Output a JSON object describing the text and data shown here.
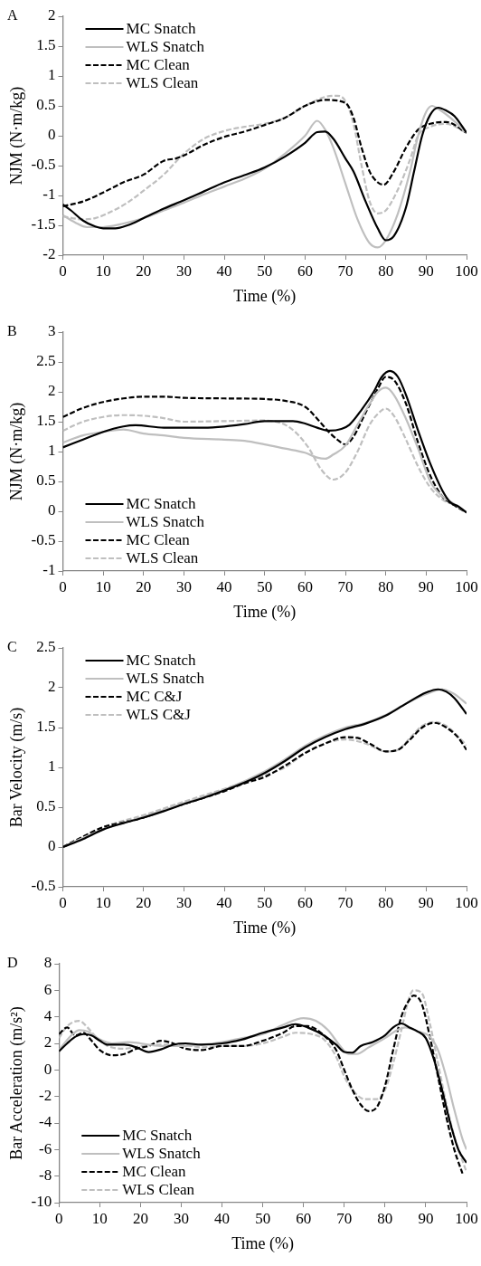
{
  "chart_data": [
    {
      "type": "line",
      "title": "A",
      "xlabel": "Time (%)",
      "ylabel": "NJM (N·m/kg)",
      "xlim": [
        0,
        100
      ],
      "xticks": [
        0,
        10,
        20,
        30,
        40,
        50,
        60,
        70,
        80,
        90,
        100
      ],
      "ylim": [
        -2,
        2
      ],
      "yticks": [
        -2,
        -1.5,
        -1,
        -0.5,
        0,
        0.5,
        1,
        1.5,
        2
      ],
      "legend": "top left",
      "series": [
        {
          "name": "MC Snatch",
          "color": "#000000",
          "line_style": "solid",
          "x": [
            0,
            2,
            5,
            8,
            10,
            13,
            16,
            20,
            25,
            30,
            35,
            40,
            45,
            50,
            55,
            60,
            63,
            65,
            67,
            70,
            72,
            75,
            78,
            80,
            82,
            85,
            87,
            89,
            91,
            93,
            95,
            97,
            100
          ],
          "values": [
            -1.15,
            -1.25,
            -1.42,
            -1.52,
            -1.55,
            -1.55,
            -1.5,
            -1.38,
            -1.22,
            -1.08,
            -0.93,
            -0.78,
            -0.66,
            -0.53,
            -0.35,
            -0.12,
            0.06,
            0.07,
            -0.05,
            -0.38,
            -0.6,
            -1.1,
            -1.55,
            -1.75,
            -1.68,
            -1.2,
            -0.6,
            0,
            0.35,
            0.47,
            0.42,
            0.33,
            0.05
          ]
        },
        {
          "name": "WLS Snatch",
          "color": "#bfbfbf",
          "line_style": "solid",
          "x": [
            0,
            3,
            6,
            10,
            15,
            20,
            25,
            30,
            35,
            40,
            45,
            50,
            55,
            60,
            63,
            65,
            67,
            70,
            73,
            76,
            78,
            80,
            83,
            86,
            88,
            90,
            91.5,
            93,
            96,
            100
          ],
          "values": [
            -1.33,
            -1.45,
            -1.53,
            -1.53,
            -1.47,
            -1.38,
            -1.25,
            -1.12,
            -0.98,
            -0.85,
            -0.72,
            -0.55,
            -0.3,
            0,
            0.25,
            0.1,
            -0.2,
            -0.8,
            -1.4,
            -1.8,
            -1.87,
            -1.75,
            -1.3,
            -0.6,
            0,
            0.4,
            0.5,
            0.45,
            0.3,
            0.05
          ]
        },
        {
          "name": "MC Clean",
          "color": "#000000",
          "line_style": "dashed",
          "x": [
            0,
            5,
            10,
            15,
            20,
            25,
            28,
            30,
            35,
            40,
            45,
            50,
            55,
            60,
            65,
            70,
            72,
            74,
            76,
            78,
            79.5,
            82,
            85,
            88,
            91,
            95,
            100
          ],
          "values": [
            -1.18,
            -1.1,
            -0.95,
            -0.78,
            -0.65,
            -0.42,
            -0.38,
            -0.33,
            -0.15,
            -0.02,
            0.07,
            0.18,
            0.3,
            0.5,
            0.6,
            0.55,
            0.3,
            -0.2,
            -0.6,
            -0.78,
            -0.82,
            -0.6,
            -0.2,
            0.1,
            0.2,
            0.23,
            0.05
          ]
        },
        {
          "name": "WLS Clean",
          "color": "#bfbfbf",
          "line_style": "dashed",
          "x": [
            0,
            5,
            8,
            12,
            16,
            20,
            25,
            30,
            35,
            40,
            45,
            50,
            55,
            60,
            65,
            68,
            70,
            72,
            74,
            76,
            78,
            80,
            83,
            86,
            88,
            91,
            95,
            100
          ],
          "values": [
            -1.35,
            -1.4,
            -1.38,
            -1.27,
            -1.12,
            -0.92,
            -0.65,
            -0.3,
            -0.05,
            0.08,
            0.15,
            0.2,
            0.3,
            0.5,
            0.65,
            0.67,
            0.58,
            0.2,
            -0.5,
            -1.1,
            -1.3,
            -1.25,
            -0.9,
            -0.4,
            0,
            0.15,
            0.2,
            0.05
          ]
        }
      ]
    },
    {
      "type": "line",
      "title": "B",
      "xlabel": "Time (%)",
      "ylabel": "NJM (N·m/kg)",
      "xlim": [
        0,
        100
      ],
      "xticks": [
        0,
        10,
        20,
        30,
        40,
        50,
        60,
        70,
        80,
        90,
        100
      ],
      "ylim": [
        -1,
        3
      ],
      "yticks": [
        -1,
        -0.5,
        0,
        0.5,
        1,
        1.5,
        2,
        2.5,
        3
      ],
      "legend": "bottom left",
      "series": [
        {
          "name": "MC Snatch",
          "color": "#000000",
          "line_style": "solid",
          "x": [
            0,
            5,
            10,
            15,
            18,
            25,
            35,
            40,
            45,
            50,
            57,
            60,
            63,
            66,
            69,
            71,
            74,
            77,
            79,
            81,
            83,
            85,
            88,
            91,
            94,
            96,
            98,
            100
          ],
          "values": [
            1.07,
            1.2,
            1.33,
            1.42,
            1.44,
            1.4,
            1.4,
            1.42,
            1.46,
            1.51,
            1.51,
            1.47,
            1.4,
            1.35,
            1.38,
            1.45,
            1.7,
            2,
            2.25,
            2.35,
            2.25,
            1.95,
            1.35,
            0.8,
            0.35,
            0.15,
            0.08,
            -0.02
          ]
        },
        {
          "name": "WLS Snatch",
          "color": "#bfbfbf",
          "line_style": "solid",
          "x": [
            0,
            5,
            10,
            15,
            20,
            25,
            30,
            40,
            45,
            50,
            55,
            60,
            63,
            65,
            67,
            70,
            73,
            76,
            78,
            80,
            82,
            85,
            88,
            91,
            94,
            97,
            100
          ],
          "values": [
            1.15,
            1.27,
            1.33,
            1.37,
            1.3,
            1.27,
            1.23,
            1.2,
            1.18,
            1.12,
            1.05,
            0.98,
            0.9,
            0.88,
            0.95,
            1.1,
            1.45,
            1.8,
            2,
            2.07,
            1.95,
            1.55,
            1.05,
            0.5,
            0.25,
            0.12,
            -0.02
          ]
        },
        {
          "name": "MC Clean",
          "color": "#000000",
          "line_style": "dashed",
          "x": [
            0,
            5,
            10,
            15,
            20,
            25,
            30,
            40,
            50,
            55,
            60,
            63,
            66,
            68,
            70,
            72,
            75,
            78,
            80,
            82,
            85,
            88,
            91,
            94,
            97,
            100
          ],
          "values": [
            1.58,
            1.73,
            1.83,
            1.89,
            1.92,
            1.92,
            1.9,
            1.89,
            1.88,
            1.85,
            1.75,
            1.55,
            1.32,
            1.2,
            1.12,
            1.25,
            1.65,
            2.05,
            2.25,
            2.2,
            1.8,
            1.15,
            0.6,
            0.25,
            0.1,
            -0.02
          ]
        },
        {
          "name": "WLS Clean",
          "color": "#bfbfbf",
          "line_style": "dashed",
          "x": [
            0,
            5,
            10,
            15,
            20,
            25,
            30,
            40,
            50,
            55,
            58,
            61,
            64,
            67,
            70,
            73,
            76,
            78,
            80,
            82,
            85,
            88,
            91,
            94,
            97,
            100
          ],
          "values": [
            1.35,
            1.5,
            1.58,
            1.61,
            1.6,
            1.56,
            1.5,
            1.51,
            1.52,
            1.45,
            1.3,
            1.05,
            0.7,
            0.53,
            0.65,
            1,
            1.45,
            1.63,
            1.72,
            1.6,
            1.2,
            0.75,
            0.4,
            0.2,
            0.1,
            -0.02
          ]
        }
      ]
    },
    {
      "type": "line",
      "title": "C",
      "xlabel": "Time (%)",
      "ylabel": "Bar Velocity (m/s)",
      "xlim": [
        0,
        100
      ],
      "xticks": [
        0,
        10,
        20,
        30,
        40,
        50,
        60,
        70,
        80,
        90,
        100
      ],
      "ylim": [
        -0.5,
        2.5
      ],
      "yticks": [
        -0.5,
        0,
        0.5,
        1,
        1.5,
        2,
        2.5
      ],
      "legend": "top left",
      "series": [
        {
          "name": "MC Snatch",
          "color": "#000000",
          "line_style": "solid",
          "x": [
            0,
            5,
            10,
            15,
            20,
            25,
            30,
            35,
            40,
            45,
            50,
            55,
            60,
            65,
            70,
            75,
            80,
            85,
            90,
            93,
            95,
            97,
            100
          ],
          "values": [
            0,
            0.1,
            0.22,
            0.3,
            0.37,
            0.45,
            0.54,
            0.62,
            0.71,
            0.81,
            0.93,
            1.08,
            1.25,
            1.38,
            1.48,
            1.55,
            1.65,
            1.8,
            1.94,
            1.98,
            1.95,
            1.87,
            1.67
          ]
        },
        {
          "name": "WLS Snatch",
          "color": "#bfbfbf",
          "line_style": "solid",
          "x": [
            0,
            10,
            20,
            30,
            40,
            50,
            55,
            60,
            65,
            70,
            75,
            80,
            85,
            90,
            94,
            97,
            100
          ],
          "values": [
            0,
            0.22,
            0.38,
            0.55,
            0.72,
            0.95,
            1.1,
            1.27,
            1.4,
            1.5,
            1.56,
            1.66,
            1.8,
            1.92,
            1.98,
            1.92,
            1.8
          ]
        },
        {
          "name": "MC C&J",
          "color": "#000000",
          "line_style": "dashed",
          "x": [
            0,
            5,
            10,
            15,
            20,
            25,
            30,
            35,
            40,
            45,
            50,
            55,
            60,
            65,
            70,
            73,
            76,
            80,
            83,
            86,
            89,
            92,
            95,
            98,
            100
          ],
          "values": [
            0,
            0.13,
            0.25,
            0.31,
            0.37,
            0.46,
            0.54,
            0.62,
            0.7,
            0.8,
            0.88,
            1.02,
            1.18,
            1.3,
            1.38,
            1.37,
            1.3,
            1.2,
            1.22,
            1.35,
            1.5,
            1.56,
            1.5,
            1.37,
            1.22
          ]
        },
        {
          "name": "WLS C&J",
          "color": "#bfbfbf",
          "line_style": "dashed",
          "x": [
            0,
            10,
            20,
            30,
            40,
            50,
            55,
            60,
            65,
            70,
            75,
            80,
            83,
            86,
            89,
            92,
            95,
            100
          ],
          "values": [
            0,
            0.25,
            0.4,
            0.57,
            0.73,
            0.9,
            1,
            1.18,
            1.3,
            1.35,
            1.3,
            1.2,
            1.22,
            1.37,
            1.52,
            1.57,
            1.52,
            1.28
          ]
        }
      ]
    },
    {
      "type": "line",
      "title": "D",
      "xlabel": "Time (%)",
      "ylabel": "Bar Acceleration (m/s²)",
      "xlim": [
        0,
        100
      ],
      "xticks": [
        0,
        10,
        20,
        30,
        40,
        50,
        60,
        70,
        80,
        90,
        100
      ],
      "ylim": [
        -10,
        8
      ],
      "yticks": [
        -10,
        -8,
        -6,
        -4,
        -2,
        0,
        2,
        4,
        6,
        8
      ],
      "legend": "bottom left",
      "series": [
        {
          "name": "MC Snatch",
          "color": "#000000",
          "line_style": "solid",
          "x": [
            0,
            2,
            4,
            6,
            8,
            10,
            12,
            16,
            19,
            22,
            25,
            28,
            31,
            35,
            40,
            45,
            50,
            55,
            58,
            61,
            65,
            68,
            70,
            72,
            74,
            77,
            80,
            82,
            84,
            86,
            88,
            90,
            92,
            94,
            96,
            98,
            100
          ],
          "values": [
            1.4,
            2,
            2.5,
            2.7,
            2.6,
            2.2,
            1.9,
            1.9,
            1.7,
            1.35,
            1.55,
            1.9,
            2,
            1.9,
            2,
            2.3,
            2.8,
            3.2,
            3.45,
            3.2,
            2.6,
            1.9,
            1.35,
            1.3,
            1.8,
            2.1,
            2.6,
            3.2,
            3.5,
            3.2,
            2.9,
            2.4,
            0.8,
            -1.5,
            -4,
            -6,
            -7
          ]
        },
        {
          "name": "WLS Snatch",
          "color": "#bfbfbf",
          "line_style": "solid",
          "x": [
            0,
            3,
            5,
            7,
            10,
            13,
            17,
            20,
            25,
            30,
            35,
            40,
            45,
            50,
            55,
            60,
            63,
            66,
            69,
            71,
            73,
            76,
            80,
            83,
            85,
            88,
            91,
            93,
            95,
            97,
            99,
            100
          ],
          "values": [
            1.5,
            2.6,
            3,
            2.9,
            2.3,
            2,
            2.1,
            2,
            1.8,
            1.8,
            1.9,
            2.1,
            2.4,
            2.7,
            3.4,
            3.9,
            3.7,
            3,
            1.8,
            1.2,
            1.2,
            1.7,
            2.4,
            3,
            3.2,
            2.9,
            2.5,
            1.5,
            -0.5,
            -3,
            -5.2,
            -6
          ]
        },
        {
          "name": "MC Clean",
          "color": "#000000",
          "line_style": "dashed",
          "x": [
            0,
            2,
            4,
            6,
            8,
            10,
            13,
            16,
            19,
            22,
            25,
            28,
            31,
            35,
            40,
            45,
            50,
            55,
            58,
            61,
            65,
            68,
            70,
            72,
            74,
            76,
            78,
            80,
            82,
            84,
            86,
            87,
            89,
            91,
            93,
            95,
            97,
            99
          ],
          "values": [
            2.7,
            3.2,
            2.6,
            2.8,
            2.2,
            1.5,
            1.1,
            1.2,
            1.6,
            1.8,
            2.2,
            2,
            1.6,
            1.5,
            1.8,
            1.8,
            2.2,
            2.8,
            3.3,
            3.3,
            2.6,
            1.5,
            0,
            -1.5,
            -2.6,
            -3.1,
            -2.8,
            -1.2,
            1.5,
            4,
            5.3,
            5.6,
            5,
            2.5,
            -0.5,
            -3.5,
            -6,
            -7.8
          ]
        },
        {
          "name": "WLS Clean",
          "color": "#bfbfbf",
          "line_style": "dashed",
          "x": [
            0,
            2,
            5,
            7,
            9,
            12,
            16,
            20,
            25,
            30,
            35,
            40,
            45,
            50,
            55,
            58,
            62,
            65,
            68,
            70,
            72,
            75,
            78,
            80,
            82,
            84,
            86,
            87,
            89,
            91,
            93,
            95,
            97,
            100
          ],
          "values": [
            2.4,
            3.3,
            3.7,
            3.2,
            2.5,
            1.8,
            1.6,
            1.8,
            1.9,
            1.9,
            1.7,
            1.8,
            1.8,
            2,
            2.5,
            2.8,
            2.7,
            2.3,
            1,
            -0.5,
            -1.5,
            -2.2,
            -2.2,
            -1.5,
            0.5,
            3,
            5.5,
            6,
            5.8,
            3.5,
            0.5,
            -2.5,
            -5,
            -7.7
          ]
        }
      ]
    }
  ]
}
